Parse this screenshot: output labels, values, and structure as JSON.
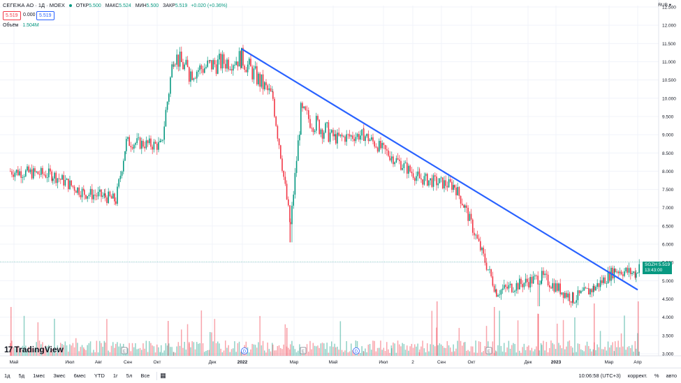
{
  "header": {
    "symbol": "СЕГЕЖА АО · 1Д · MOEX",
    "open_label": "ОТКР",
    "open_value": "5.500",
    "high_label": "МАКС",
    "high_value": "5.524",
    "low_label": "МИН",
    "low_value": "5.500",
    "close_label": "ЗАКР",
    "close_value": "5.519",
    "change": "+0.020 (+0.36%)",
    "sell_price": "5.519",
    "spread": "0.000",
    "buy_price": "5.519",
    "volume_label": "Объём",
    "volume_value": "1.504M",
    "currency": "RUB"
  },
  "price_tag": {
    "symbol": "SGZH",
    "price": "5.519",
    "countdown": "13:43:00"
  },
  "bottom_bar": {
    "timeframes": [
      "1д",
      "5д",
      "1мес",
      "3мес",
      "6мес",
      "YTD",
      "1г",
      "5л",
      "Все"
    ],
    "time": "10:06:58 (UTC+3)",
    "adjust": "коррект.",
    "percent": "%",
    "auto": "авто"
  },
  "logo_text": "TradingView",
  "colors": {
    "up": "#089981",
    "down": "#f23645",
    "trendline": "#2962ff",
    "grid": "#f0f3fa"
  },
  "chart_data": {
    "type": "candlestick",
    "y_axis_ticks": [
      "12.500",
      "12.000",
      "11.500",
      "11.000",
      "10.500",
      "10.000",
      "9.500",
      "9.000",
      "8.500",
      "8.000",
      "7.500",
      "7.000",
      "6.500",
      "6.000",
      "5.500",
      "5.000",
      "4.500",
      "4.000",
      "3.500",
      "3.000"
    ],
    "x_axis_ticks": [
      "Май",
      "Июл",
      "Авг",
      "Сен",
      "Окт",
      "Дек",
      "2022",
      "Мар",
      "Май",
      "Июл",
      "2",
      "Сен",
      "Окт",
      "Дек",
      "2023",
      "Мар",
      "Апр"
    ],
    "ylim": [
      3.0,
      12.5
    ],
    "approx_close_path": [
      {
        "date": "2021-05",
        "close": 8.0
      },
      {
        "date": "2021-06",
        "close": 7.9
      },
      {
        "date": "2021-07",
        "close": 7.4
      },
      {
        "date": "2021-08",
        "close": 7.3
      },
      {
        "date": "2021-08-end",
        "close": 7.2
      },
      {
        "date": "2021-09",
        "close": 8.8
      },
      {
        "date": "2021-09-end",
        "close": 8.7
      },
      {
        "date": "2021-10",
        "close": 11.2
      },
      {
        "date": "2021-11",
        "close": 10.7
      },
      {
        "date": "2021-12",
        "close": 10.9
      },
      {
        "date": "2022-01",
        "close": 11.1
      },
      {
        "date": "2022-02",
        "close": 10.0
      },
      {
        "date": "2022-02-end",
        "close": 6.5
      },
      {
        "date": "2022-03",
        "close": 9.6
      },
      {
        "date": "2022-04",
        "close": 8.9
      },
      {
        "date": "2022-05",
        "close": 9.0
      },
      {
        "date": "2022-06",
        "close": 8.4
      },
      {
        "date": "2022-07",
        "close": 7.8
      },
      {
        "date": "2022-08",
        "close": 7.6
      },
      {
        "date": "2022-09",
        "close": 7.0
      },
      {
        "date": "2022-10",
        "close": 4.7
      },
      {
        "date": "2022-11",
        "close": 5.1
      },
      {
        "date": "2022-12",
        "close": 4.5
      },
      {
        "date": "2023-01",
        "close": 4.8
      },
      {
        "date": "2023-02",
        "close": 5.3
      },
      {
        "date": "2023-03",
        "close": 5.2
      },
      {
        "date": "2023-04",
        "close": 5.519
      }
    ],
    "trendline": {
      "start": {
        "date": "2022-01",
        "value": 11.35
      },
      "end": {
        "date": "2023-04",
        "value": 4.75
      }
    },
    "last_price": 5.519
  }
}
